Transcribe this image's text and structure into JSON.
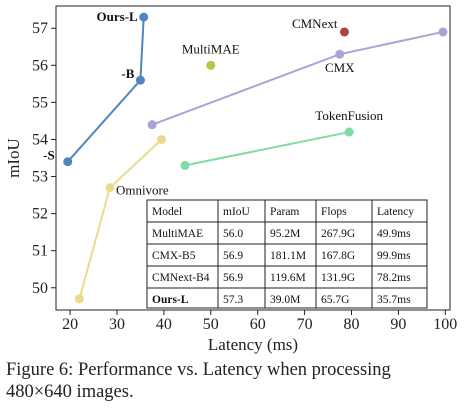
{
  "chart_data": {
    "type": "line",
    "xlabel": "Latency (ms)",
    "ylabel": "mIoU",
    "xlim": [
      17,
      101
    ],
    "ylim": [
      49.4,
      57.6
    ],
    "xticks": [
      20,
      30,
      40,
      50,
      60,
      70,
      80,
      90,
      100
    ],
    "yticks": [
      50,
      51,
      52,
      53,
      54,
      55,
      56,
      57
    ],
    "grid": false,
    "series": [
      {
        "color": "#4f86be",
        "points": [
          {
            "x": 19.5,
            "y": 53.4,
            "label": "-S",
            "bold": true
          },
          {
            "x": 35.0,
            "y": 55.6,
            "label": "-B",
            "bold": true
          },
          {
            "x": 35.7,
            "y": 57.3,
            "label": "Ours-L",
            "bold": true
          }
        ]
      },
      {
        "color": "#ecd98b",
        "points": [
          {
            "x": 22.0,
            "y": 49.7,
            "label": "",
            "bold": false
          },
          {
            "x": 28.5,
            "y": 52.7,
            "label": "Omnivore",
            "bold": false
          },
          {
            "x": 39.5,
            "y": 54.0,
            "label": "",
            "bold": false
          }
        ]
      },
      {
        "color": "#a9a4d8",
        "points": [
          {
            "x": 37.5,
            "y": 54.4,
            "label": "",
            "bold": false
          },
          {
            "x": 77.5,
            "y": 56.3,
            "label": "CMX",
            "bold": false
          },
          {
            "x": 99.5,
            "y": 56.9,
            "label": "",
            "bold": false
          }
        ]
      },
      {
        "color": "#7fdca6",
        "points": [
          {
            "x": 44.5,
            "y": 53.3,
            "label": "",
            "bold": false
          },
          {
            "x": 79.5,
            "y": 54.2,
            "label": "TokenFusion",
            "bold": false
          }
        ]
      }
    ],
    "single_points": [
      {
        "x": 50.0,
        "y": 56.0,
        "label": "MultiMAE",
        "color": "#b1c84c"
      },
      {
        "x": 78.5,
        "y": 56.9,
        "label": "CMNext",
        "color": "#a5453f"
      }
    ],
    "table": {
      "columns": [
        "Model",
        "mIoU",
        "Param",
        "Flops",
        "Latency"
      ],
      "rows": [
        [
          "MultiMAE",
          "56.0",
          "95.2M",
          "267.9G",
          "49.9ms"
        ],
        [
          "CMX-B5",
          "56.9",
          "181.1M",
          "167.8G",
          "99.9ms"
        ],
        [
          "CMNext-B4",
          "56.9",
          "119.6M",
          "131.9G",
          "78.2ms"
        ],
        [
          "Ours-L",
          "57.3",
          "39.0M",
          "65.7G",
          "35.7ms"
        ]
      ],
      "bold_row": 3
    }
  },
  "caption": {
    "line1": "Figure 6: Performance vs. Latency when processing",
    "line2": "480×640 images."
  }
}
